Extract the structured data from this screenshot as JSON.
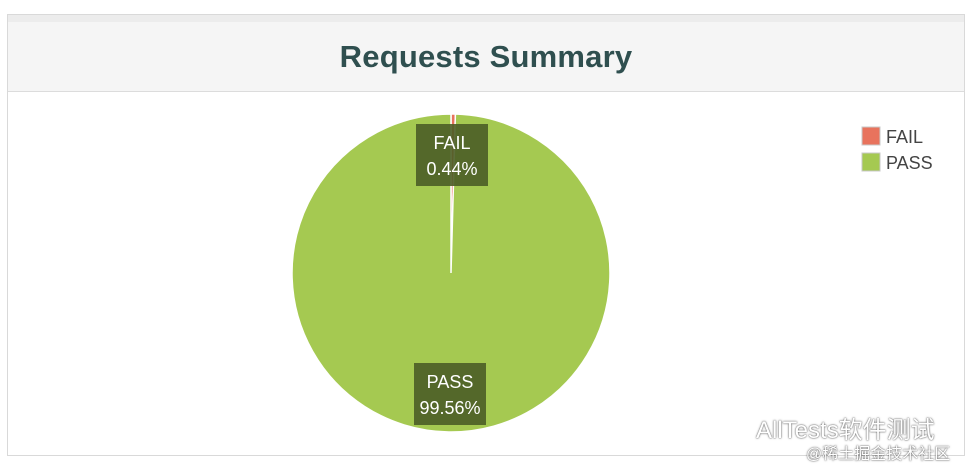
{
  "header": {
    "title": "Requests Summary"
  },
  "chart_data": {
    "type": "pie",
    "title": "Requests Summary",
    "slices": [
      {
        "name": "FAIL",
        "value": 0.44,
        "label": "0.44%",
        "color": "#e8735d"
      },
      {
        "name": "PASS",
        "value": 99.56,
        "label": "99.56%",
        "color": "#a5c951"
      }
    ],
    "legend": {
      "placement": "top-right",
      "entries": [
        {
          "name": "FAIL",
          "color": "#e8735d"
        },
        {
          "name": "PASS",
          "color": "#a5c951"
        }
      ]
    },
    "label_box_color": "#4b5d26"
  },
  "watermark": {
    "brand": "AllTests软件测试",
    "sub": "@稀土掘金技术社区"
  }
}
